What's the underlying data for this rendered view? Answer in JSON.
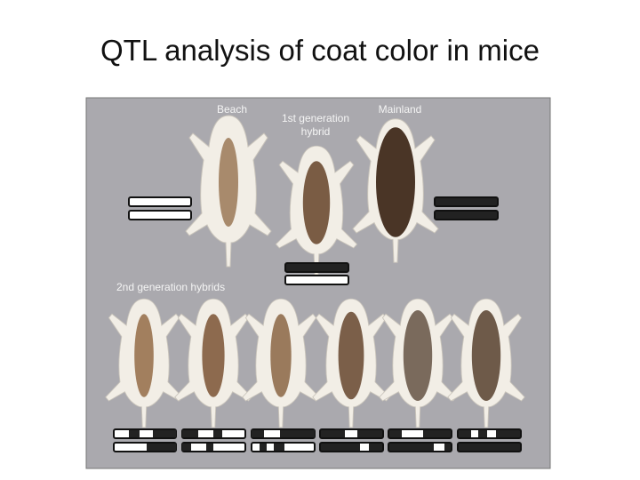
{
  "title": "QTL analysis of coat color in mice",
  "figure": {
    "labels": {
      "beach": "Beach",
      "first_generation": [
        "1st generation",
        "hybrid"
      ],
      "mainland": "Mainland",
      "second_generation": "2nd generation hybrids"
    }
  }
}
